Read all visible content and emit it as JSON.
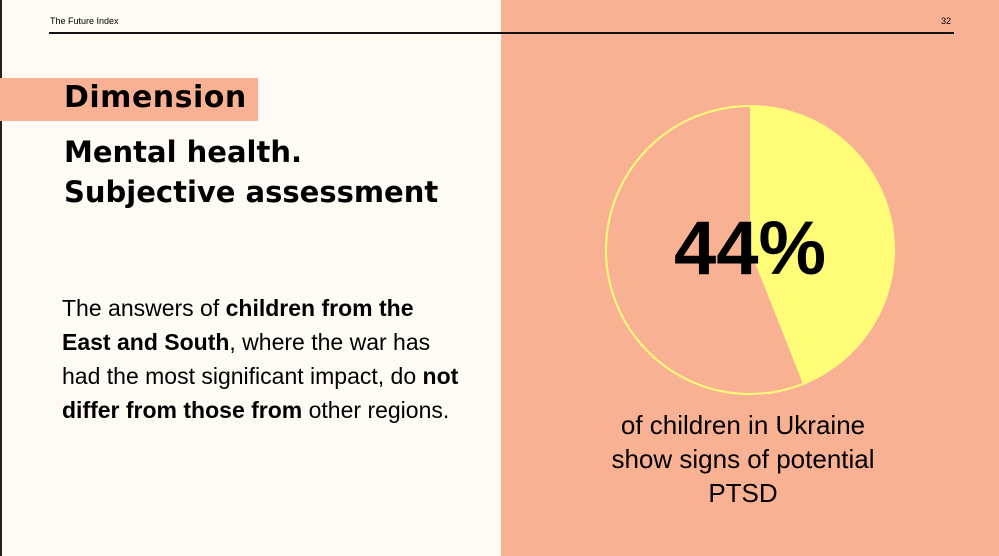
{
  "header": {
    "title": "The Future Index",
    "page_number": "32"
  },
  "dimension_label": "Dimension",
  "title_lines": [
    "Mental health.",
    "Subjective assessment"
  ],
  "body": {
    "parts": [
      {
        "text": "The answers of ",
        "bold": false
      },
      {
        "text": "children from the East and South",
        "bold": true
      },
      {
        "text": ", where the war has had the most significant impact, do ",
        "bold": false
      },
      {
        "text": "not differ from those from",
        "bold": true
      },
      {
        "text": " other regions.",
        "bold": false
      }
    ]
  },
  "chart_data": {
    "type": "pie",
    "values": [
      44,
      56
    ],
    "labels": [
      "children showing signs of potential PTSD",
      "other"
    ],
    "colors": [
      "#fffc78",
      "#f9b194"
    ],
    "data_label": "44%",
    "caption": "of children in Ukraine show signs of potential PTSD"
  }
}
